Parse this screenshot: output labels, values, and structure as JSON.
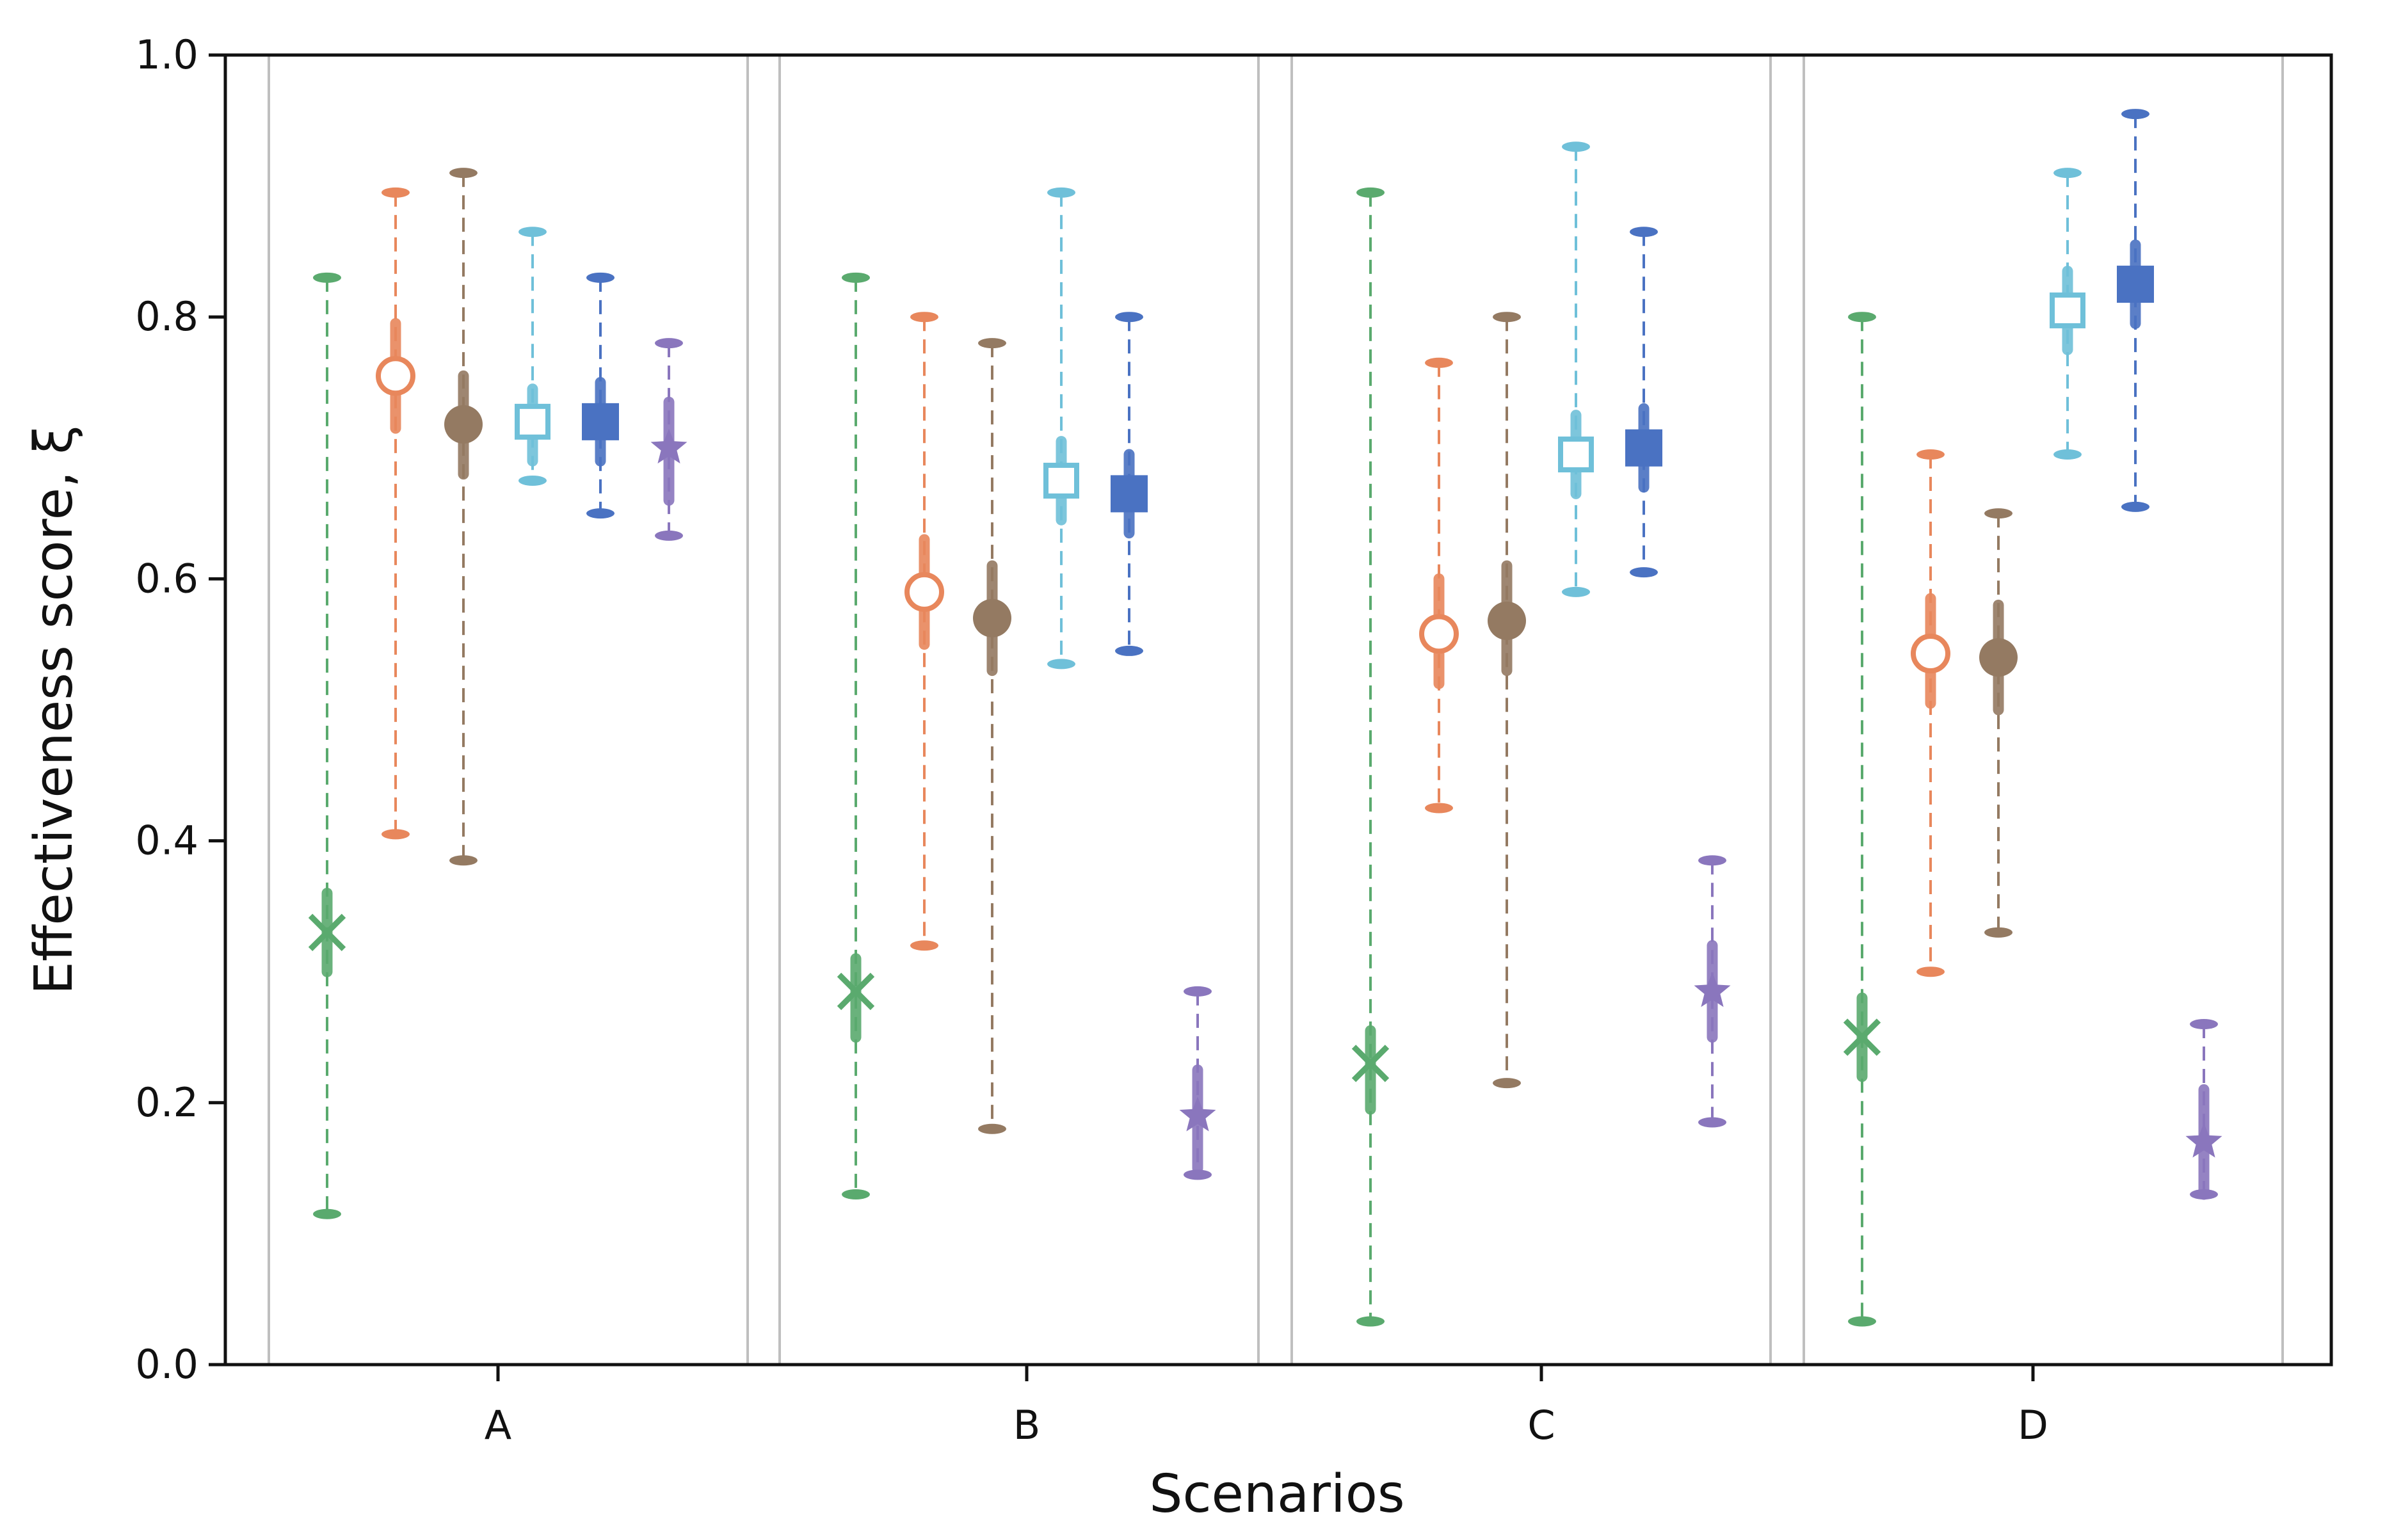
{
  "chart_data": {
    "type": "scatter",
    "subtype": "errorbar-range",
    "title": "",
    "xlabel": "Scenarios",
    "ylabel": "Effectiveness score, ξ",
    "ylim": [
      0.0,
      1.0
    ],
    "yticks": [
      "0.0",
      "0.2",
      "0.4",
      "0.6",
      "0.8",
      "1.0"
    ],
    "ytick_values": [
      0.0,
      0.2,
      0.4,
      0.6,
      0.8,
      1.0
    ],
    "categories": [
      "A",
      "B",
      "C",
      "D"
    ],
    "grid": false,
    "legend": "none",
    "series": [
      {
        "marker": "x",
        "color": "#5aaa6e",
        "points": [
          {
            "mean": 0.33,
            "q_low": 0.3,
            "q_high": 0.36,
            "min": 0.115,
            "max": 0.83
          },
          {
            "mean": 0.285,
            "q_low": 0.25,
            "q_high": 0.31,
            "min": 0.13,
            "max": 0.83
          },
          {
            "mean": 0.23,
            "q_low": 0.195,
            "q_high": 0.255,
            "min": 0.033,
            "max": 0.895
          },
          {
            "mean": 0.25,
            "q_low": 0.22,
            "q_high": 0.28,
            "min": 0.033,
            "max": 0.8
          }
        ]
      },
      {
        "marker": "circle-open",
        "color": "#e8875c",
        "points": [
          {
            "mean": 0.755,
            "q_low": 0.715,
            "q_high": 0.795,
            "min": 0.405,
            "max": 0.895
          },
          {
            "mean": 0.59,
            "q_low": 0.55,
            "q_high": 0.63,
            "min": 0.32,
            "max": 0.8
          },
          {
            "mean": 0.558,
            "q_low": 0.52,
            "q_high": 0.6,
            "min": 0.425,
            "max": 0.765
          },
          {
            "mean": 0.543,
            "q_low": 0.505,
            "q_high": 0.585,
            "min": 0.3,
            "max": 0.695
          }
        ]
      },
      {
        "marker": "circle",
        "color": "#947a62",
        "points": [
          {
            "mean": 0.718,
            "q_low": 0.68,
            "q_high": 0.755,
            "min": 0.385,
            "max": 0.91
          },
          {
            "mean": 0.57,
            "q_low": 0.53,
            "q_high": 0.61,
            "min": 0.18,
            "max": 0.78
          },
          {
            "mean": 0.568,
            "q_low": 0.53,
            "q_high": 0.61,
            "min": 0.215,
            "max": 0.8
          },
          {
            "mean": 0.54,
            "q_low": 0.5,
            "q_high": 0.58,
            "min": 0.33,
            "max": 0.65
          }
        ]
      },
      {
        "marker": "square-open",
        "color": "#6fc0d9",
        "points": [
          {
            "mean": 0.72,
            "q_low": 0.69,
            "q_high": 0.745,
            "min": 0.675,
            "max": 0.865
          },
          {
            "mean": 0.675,
            "q_low": 0.645,
            "q_high": 0.705,
            "min": 0.535,
            "max": 0.895
          },
          {
            "mean": 0.695,
            "q_low": 0.665,
            "q_high": 0.725,
            "min": 0.59,
            "max": 0.93
          },
          {
            "mean": 0.805,
            "q_low": 0.775,
            "q_high": 0.835,
            "min": 0.695,
            "max": 0.91
          }
        ]
      },
      {
        "marker": "square",
        "color": "#4a72c2",
        "points": [
          {
            "mean": 0.72,
            "q_low": 0.69,
            "q_high": 0.75,
            "min": 0.65,
            "max": 0.83
          },
          {
            "mean": 0.665,
            "q_low": 0.635,
            "q_high": 0.695,
            "min": 0.545,
            "max": 0.8
          },
          {
            "mean": 0.7,
            "q_low": 0.67,
            "q_high": 0.73,
            "min": 0.605,
            "max": 0.865
          },
          {
            "mean": 0.825,
            "q_low": 0.795,
            "q_high": 0.855,
            "min": 0.655,
            "max": 0.955
          }
        ]
      },
      {
        "marker": "star",
        "color": "#8a76bd",
        "points": [
          {
            "mean": 0.7,
            "q_low": 0.66,
            "q_high": 0.735,
            "min": 0.633,
            "max": 0.78
          },
          {
            "mean": 0.19,
            "q_low": 0.15,
            "q_high": 0.225,
            "min": 0.145,
            "max": 0.285
          },
          {
            "mean": 0.285,
            "q_low": 0.25,
            "q_high": 0.32,
            "min": 0.185,
            "max": 0.385
          },
          {
            "mean": 0.17,
            "q_low": 0.13,
            "q_high": 0.21,
            "min": 0.13,
            "max": 0.26
          }
        ]
      }
    ]
  }
}
